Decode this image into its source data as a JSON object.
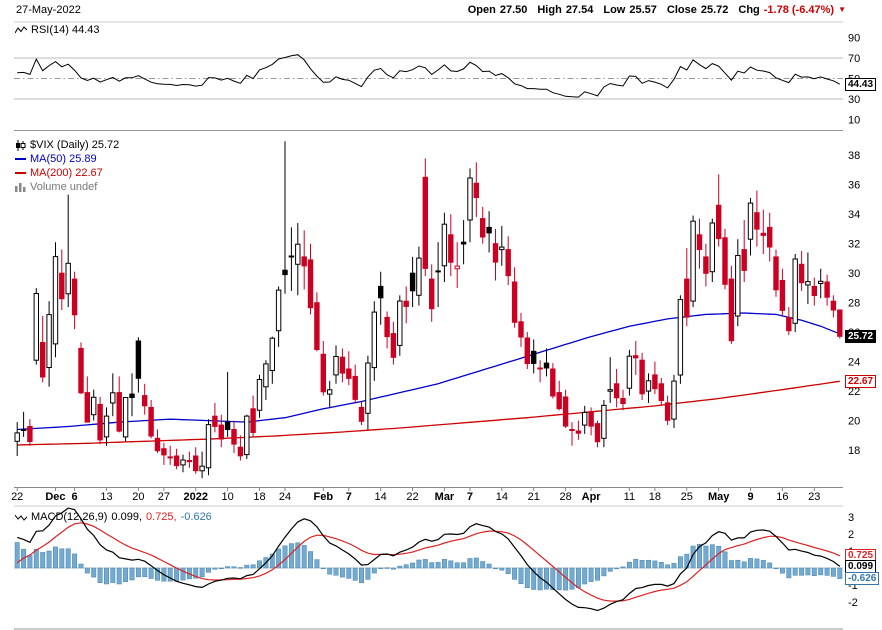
{
  "header": {
    "date": "27-May-2022",
    "open_label": "Open",
    "open_value": "27.50",
    "high_label": "High",
    "high_value": "27.54",
    "low_label": "Low",
    "low_value": "25.57",
    "close_label": "Close",
    "close_value": "25.72",
    "chg_label": "Chg",
    "chg_value": "-1.78 (-6.47%)",
    "chg_direction": "▼"
  },
  "rsi_panel": {
    "legend": "RSI(14) 44.43",
    "badge": "44.43"
  },
  "main_panel": {
    "legend_symbol": "$VIX (Daily) 25.72",
    "legend_ma50": "MA(50) 25.89",
    "legend_ma200": "MA(200) 22.67",
    "legend_volume": "Volume undef",
    "price_badge": "25.72",
    "ma200_badge": "22.67"
  },
  "macd_panel": {
    "legend_name": "MACD(12,26,9)",
    "legend_macd_value": "0.099,",
    "legend_signal_value": "0.725,",
    "legend_hist_value": "-0.626",
    "badge_signal": "0.725",
    "badge_macd": "0.099",
    "badge_hist": "-0.626"
  },
  "colors": {
    "candle_up": "#000000",
    "candle_down": "#cc0022",
    "ma50": "#0000cc",
    "ma200": "#cc0000",
    "rsi_line": "#000000",
    "macd_line": "#000000",
    "macd_signal": "#dd2222",
    "hist_fill": "#74aad0",
    "hist_stroke": "#4080b0",
    "chg_red": "#cc0000",
    "grid": "#bbbbbb",
    "border": "#999999"
  },
  "chart_data": {
    "type": "candlestick",
    "symbol": "$VIX",
    "timeframe": "Daily",
    "last": {
      "open": 27.5,
      "high": 27.54,
      "low": 25.57,
      "close": 25.72,
      "chg": -1.78,
      "chg_pct": -6.47
    },
    "price_axis": {
      "ticks": [
        38,
        36,
        34,
        32,
        30,
        28,
        26,
        24,
        22,
        20,
        18
      ],
      "min": 15.5,
      "max": 39.3
    },
    "rsi": {
      "period": 14,
      "value": 44.43,
      "ticks": [
        90,
        70,
        50,
        30,
        10
      ],
      "overbought": 70,
      "oversold": 30,
      "midline": 50
    },
    "macd": {
      "fast": 12,
      "slow": 26,
      "signal_period": 9,
      "value": 0.099,
      "signal": 0.725,
      "histogram": -0.626,
      "ticks": [
        3,
        2,
        1,
        0,
        -1,
        -2
      ]
    },
    "ma50": {
      "period": 50,
      "value": 25.89,
      "points": [
        [
          0,
          19.4
        ],
        [
          8,
          19.6
        ],
        [
          16,
          19.9
        ],
        [
          24,
          20.1
        ],
        [
          30,
          20.0
        ],
        [
          36,
          19.9
        ],
        [
          42,
          20.2
        ],
        [
          48,
          20.8
        ],
        [
          54,
          21.3
        ],
        [
          60,
          21.9
        ],
        [
          66,
          22.5
        ],
        [
          72,
          23.3
        ],
        [
          78,
          24.1
        ],
        [
          84,
          24.9
        ],
        [
          90,
          25.7
        ],
        [
          96,
          26.4
        ],
        [
          102,
          26.9
        ],
        [
          108,
          27.2
        ],
        [
          114,
          27.3
        ],
        [
          119,
          27.2
        ],
        [
          123,
          26.8
        ],
        [
          126,
          26.4
        ],
        [
          129,
          25.89
        ]
      ]
    },
    "ma200": {
      "period": 200,
      "value": 22.67,
      "points": [
        [
          0,
          18.35
        ],
        [
          10,
          18.45
        ],
        [
          20,
          18.6
        ],
        [
          30,
          18.75
        ],
        [
          40,
          18.95
        ],
        [
          50,
          19.2
        ],
        [
          60,
          19.5
        ],
        [
          70,
          19.85
        ],
        [
          80,
          20.2
        ],
        [
          90,
          20.6
        ],
        [
          100,
          21.0
        ],
        [
          110,
          21.5
        ],
        [
          120,
          22.1
        ],
        [
          129,
          22.67
        ]
      ]
    },
    "x_labels": [
      [
        0,
        "22",
        0
      ],
      [
        6,
        "Dec",
        1
      ],
      [
        9,
        "6",
        1
      ],
      [
        14,
        "13",
        0
      ],
      [
        19,
        "20",
        0
      ],
      [
        23,
        "27",
        0
      ],
      [
        28,
        "2022",
        1
      ],
      [
        33,
        "10",
        0
      ],
      [
        38,
        "18",
        0
      ],
      [
        42,
        "24",
        0
      ],
      [
        48,
        "Feb",
        1
      ],
      [
        52,
        "7",
        1
      ],
      [
        57,
        "14",
        0
      ],
      [
        62,
        "22",
        0
      ],
      [
        67,
        "Mar",
        1
      ],
      [
        71,
        "7",
        1
      ],
      [
        76,
        "14",
        0
      ],
      [
        81,
        "21",
        0
      ],
      [
        86,
        "28",
        0
      ],
      [
        90,
        "Apr",
        1
      ],
      [
        96,
        "11",
        0
      ],
      [
        100,
        "18",
        0
      ],
      [
        105,
        "25",
        0
      ],
      [
        110,
        "May",
        1
      ],
      [
        115,
        "9",
        1
      ],
      [
        120,
        "16",
        0
      ],
      [
        125,
        "23",
        0
      ]
    ],
    "candles": [
      [
        18.6,
        19.9,
        17.6,
        19.17
      ],
      [
        19.4,
        20.6,
        18.9,
        19.38
      ],
      [
        19.6,
        20.1,
        18.3,
        18.58
      ],
      [
        24.1,
        28.99,
        23.8,
        28.62
      ],
      [
        25.3,
        27.1,
        22.6,
        22.96
      ],
      [
        23.6,
        28.1,
        22.3,
        27.19
      ],
      [
        25.2,
        32.1,
        24.3,
        31.12
      ],
      [
        30.0,
        31.6,
        27.5,
        28.27
      ],
      [
        28.6,
        35.32,
        27.7,
        30.67
      ],
      [
        29.6,
        30.1,
        26.2,
        27.18
      ],
      [
        24.9,
        25.3,
        21.8,
        21.89
      ],
      [
        21.9,
        23.0,
        19.9,
        19.9
      ],
      [
        20.4,
        22.1,
        20.0,
        21.58
      ],
      [
        21.1,
        21.6,
        18.4,
        18.69
      ],
      [
        18.9,
        20.9,
        18.3,
        20.31
      ],
      [
        21.2,
        23.2,
        20.3,
        21.89
      ],
      [
        21.9,
        23.0,
        19.2,
        19.29
      ],
      [
        18.9,
        21.6,
        18.6,
        21.57
      ],
      [
        21.8,
        23.2,
        20.3,
        21.57
      ],
      [
        25.4,
        25.65,
        21.9,
        22.87
      ],
      [
        21.7,
        22.5,
        20.4,
        21.01
      ],
      [
        20.9,
        21.4,
        18.8,
        18.96
      ],
      [
        18.8,
        19.4,
        17.8,
        17.96
      ],
      [
        18.1,
        18.5,
        17.0,
        17.68
      ],
      [
        17.5,
        18.3,
        17.0,
        17.54
      ],
      [
        17.6,
        18.1,
        16.7,
        16.95
      ],
      [
        17.0,
        17.7,
        16.5,
        17.33
      ],
      [
        17.3,
        17.9,
        16.8,
        17.22
      ],
      [
        17.6,
        18.2,
        16.4,
        16.6
      ],
      [
        16.6,
        17.9,
        16.1,
        16.91
      ],
      [
        16.8,
        20.1,
        16.3,
        19.73
      ],
      [
        20.3,
        21.2,
        19.2,
        19.61
      ],
      [
        19.7,
        20.4,
        18.2,
        18.76
      ],
      [
        19.9,
        23.3,
        18.9,
        19.4
      ],
      [
        19.4,
        20.0,
        17.8,
        18.41
      ],
      [
        18.2,
        19.0,
        17.3,
        17.62
      ],
      [
        17.7,
        20.4,
        17.4,
        20.31
      ],
      [
        20.8,
        21.7,
        18.9,
        19.19
      ],
      [
        20.7,
        23.1,
        20.2,
        22.79
      ],
      [
        22.3,
        24.1,
        21.4,
        23.85
      ],
      [
        23.4,
        25.7,
        22.5,
        25.59
      ],
      [
        26.1,
        29.1,
        25.0,
        28.85
      ],
      [
        30.2,
        38.94,
        28.6,
        29.9
      ],
      [
        31.1,
        33.1,
        28.8,
        31.16
      ],
      [
        30.6,
        33.4,
        28.5,
        31.96
      ],
      [
        31.1,
        32.9,
        28.9,
        30.49
      ],
      [
        30.9,
        32.0,
        27.2,
        27.66
      ],
      [
        28.0,
        28.7,
        24.7,
        24.83
      ],
      [
        24.5,
        25.4,
        21.7,
        21.96
      ],
      [
        21.8,
        22.7,
        20.9,
        22.09
      ],
      [
        23.1,
        25.1,
        22.5,
        24.35
      ],
      [
        24.3,
        24.9,
        22.6,
        23.22
      ],
      [
        23.5,
        24.7,
        22.4,
        22.86
      ],
      [
        23.0,
        23.8,
        21.2,
        21.44
      ],
      [
        20.9,
        21.3,
        19.7,
        19.96
      ],
      [
        20.5,
        24.4,
        19.4,
        23.91
      ],
      [
        23.6,
        28.1,
        22.7,
        27.36
      ],
      [
        29.1,
        30.1,
        26.5,
        28.33
      ],
      [
        27.0,
        27.4,
        24.9,
        25.7
      ],
      [
        25.9,
        26.7,
        23.8,
        24.29
      ],
      [
        25.1,
        28.5,
        24.4,
        28.11
      ],
      [
        28.1,
        29.1,
        26.6,
        27.75
      ],
      [
        30.0,
        31.1,
        27.7,
        28.81
      ],
      [
        28.5,
        31.8,
        27.8,
        31.02
      ],
      [
        36.5,
        37.79,
        29.8,
        30.32
      ],
      [
        29.6,
        30.6,
        26.7,
        27.59
      ],
      [
        30.1,
        32.1,
        27.7,
        30.15
      ],
      [
        30.5,
        34.1,
        29.4,
        33.32
      ],
      [
        32.6,
        34.0,
        29.8,
        30.74
      ],
      [
        30.3,
        32.1,
        29.0,
        30.48
      ],
      [
        32.1,
        33.6,
        30.6,
        31.98
      ],
      [
        33.6,
        37.1,
        32.1,
        36.45
      ],
      [
        36.1,
        37.52,
        33.8,
        35.13
      ],
      [
        33.7,
        34.5,
        32.0,
        32.45
      ],
      [
        33.1,
        34.2,
        31.4,
        32.73
      ],
      [
        32.0,
        33.0,
        29.5,
        30.75
      ],
      [
        31.6,
        33.2,
        30.5,
        31.77
      ],
      [
        31.6,
        32.5,
        29.2,
        29.83
      ],
      [
        29.4,
        30.4,
        26.3,
        26.67
      ],
      [
        26.7,
        27.3,
        25.0,
        25.67
      ],
      [
        25.6,
        26.0,
        23.5,
        23.87
      ],
      [
        24.7,
        25.5,
        23.2,
        23.88
      ],
      [
        23.5,
        24.1,
        22.6,
        23.57
      ],
      [
        23.9,
        24.9,
        23.0,
        23.57
      ],
      [
        23.5,
        23.9,
        21.5,
        21.67
      ],
      [
        21.9,
        22.7,
        20.7,
        20.81
      ],
      [
        21.6,
        22.1,
        19.5,
        19.63
      ],
      [
        19.4,
        19.9,
        18.3,
        19.33
      ],
      [
        19.3,
        20.0,
        18.7,
        19.15
      ],
      [
        19.7,
        21.0,
        19.1,
        20.56
      ],
      [
        20.6,
        20.9,
        19.0,
        19.63
      ],
      [
        19.8,
        20.0,
        18.2,
        18.57
      ],
      [
        18.8,
        21.4,
        18.2,
        21.03
      ],
      [
        22.0,
        24.3,
        21.2,
        22.1
      ],
      [
        22.5,
        23.5,
        20.9,
        21.55
      ],
      [
        21.5,
        22.1,
        20.7,
        21.16
      ],
      [
        22.2,
        24.8,
        21.7,
        24.37
      ],
      [
        24.4,
        25.4,
        23.1,
        24.26
      ],
      [
        24.1,
        24.6,
        21.4,
        21.82
      ],
      [
        22.0,
        23.2,
        21.2,
        22.7
      ],
      [
        23.1,
        24.0,
        21.8,
        22.17
      ],
      [
        22.5,
        22.9,
        21.0,
        21.37
      ],
      [
        21.2,
        21.7,
        19.7,
        20.02
      ],
      [
        20.1,
        23.1,
        19.5,
        22.68
      ],
      [
        23.1,
        28.5,
        22.5,
        28.21
      ],
      [
        29.6,
        31.7,
        26.4,
        27.02
      ],
      [
        28.1,
        33.9,
        27.7,
        33.52
      ],
      [
        32.6,
        33.7,
        30.3,
        31.6
      ],
      [
        31.1,
        32.0,
        29.1,
        29.99
      ],
      [
        30.1,
        33.7,
        29.4,
        33.4
      ],
      [
        34.6,
        36.7,
        31.8,
        32.34
      ],
      [
        32.4,
        33.0,
        28.9,
        29.25
      ],
      [
        29.6,
        30.5,
        25.2,
        25.42
      ],
      [
        27.1,
        32.3,
        26.4,
        31.2
      ],
      [
        31.6,
        33.6,
        29.4,
        30.19
      ],
      [
        32.3,
        35.1,
        31.2,
        34.75
      ],
      [
        34.1,
        35.6,
        31.8,
        32.99
      ],
      [
        32.7,
        34.3,
        31.3,
        32.56
      ],
      [
        33.1,
        34.1,
        30.8,
        31.77
      ],
      [
        31.1,
        31.6,
        28.4,
        28.87
      ],
      [
        29.5,
        30.3,
        27.1,
        27.47
      ],
      [
        27.0,
        27.7,
        25.8,
        26.1
      ],
      [
        26.6,
        31.3,
        26.0,
        30.96
      ],
      [
        30.6,
        31.5,
        28.8,
        29.35
      ],
      [
        29.2,
        31.4,
        27.9,
        29.43
      ],
      [
        29.1,
        29.7,
        27.8,
        28.48
      ],
      [
        29.3,
        30.3,
        28.3,
        29.45
      ],
      [
        29.4,
        29.9,
        27.8,
        28.37
      ],
      [
        28.1,
        28.5,
        27.0,
        27.5
      ],
      [
        27.5,
        27.54,
        25.57,
        25.72
      ]
    ]
  }
}
